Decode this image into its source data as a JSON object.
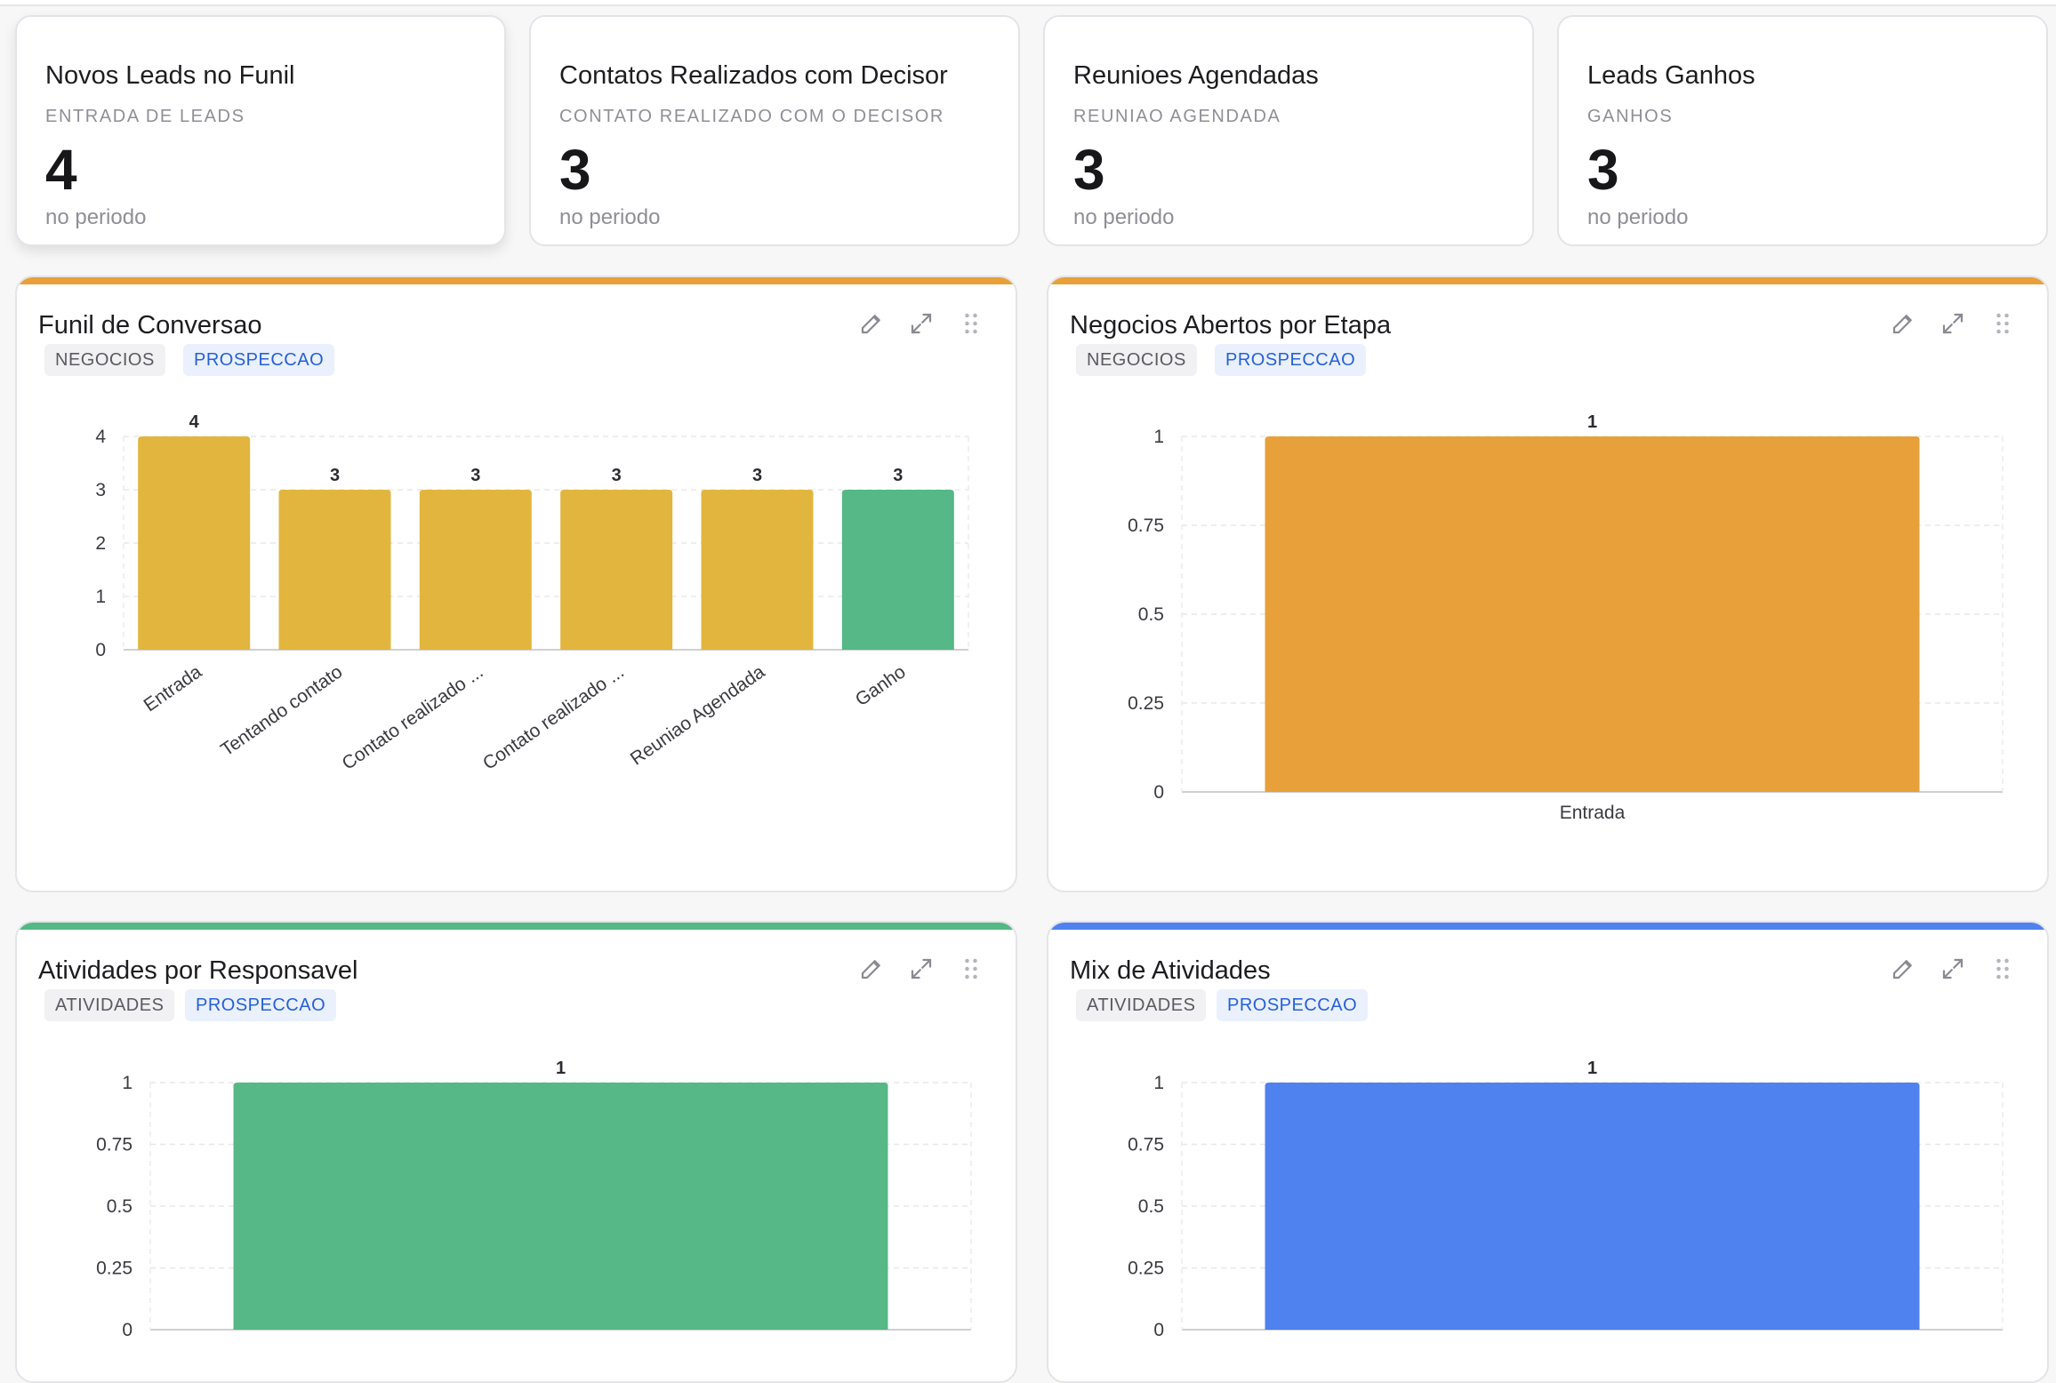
{
  "stats": [
    {
      "title": "Novos Leads no Funil",
      "subtitle": "ENTRADA DE LEADS",
      "value": "4",
      "foot": "no periodo"
    },
    {
      "title": "Contatos Realizados com Decisor",
      "subtitle": "CONTATO REALIZADO COM O DECISOR",
      "value": "3",
      "foot": "no periodo"
    },
    {
      "title": "Reunioes Agendadas",
      "subtitle": "REUNIAO AGENDADA",
      "value": "3",
      "foot": "no periodo"
    },
    {
      "title": "Leads Ganhos",
      "subtitle": "GANHOS",
      "value": "3",
      "foot": "no periodo"
    }
  ],
  "charts": [
    {
      "title": "Funil de Conversao",
      "tags": [
        "NEGOCIOS",
        "PROSPECCAO"
      ],
      "accent": "#e8a03a"
    },
    {
      "title": "Negocios Abertos por Etapa",
      "tags": [
        "NEGOCIOS",
        "PROSPECCAO"
      ],
      "accent": "#e8a03a"
    },
    {
      "title": "Atividades por Responsavel",
      "tags": [
        "ATIVIDADES",
        "PROSPECCAO"
      ],
      "accent": "#54b884"
    },
    {
      "title": "Mix de Atividades",
      "tags": [
        "ATIVIDADES",
        "PROSPECCAO"
      ],
      "accent": "#4f81ef"
    }
  ],
  "icons": {
    "edit": "pencil-icon",
    "expand": "expand-icon",
    "drag": "drag-handle-icon"
  },
  "chart_data": [
    {
      "type": "bar",
      "title": "Funil de Conversao",
      "categories": [
        "Entrada",
        "Tentando contato",
        "Contato realizado ...",
        "Contato realizado ...",
        "Reuniao Agendada",
        "Ganho"
      ],
      "values": [
        4,
        3,
        3,
        3,
        3,
        3
      ],
      "colors": [
        "#e2b53e",
        "#e2b53e",
        "#e2b53e",
        "#e2b53e",
        "#e2b53e",
        "#55b886"
      ],
      "yticks": [
        "0",
        "1",
        "2",
        "3",
        "4"
      ],
      "ylim": [
        0,
        4
      ],
      "grid": true
    },
    {
      "type": "bar",
      "title": "Negocios Abertos por Etapa",
      "categories": [
        "Entrada"
      ],
      "values": [
        1
      ],
      "colors": [
        "#e8a03a"
      ],
      "yticks": [
        "0",
        "0.25",
        "0.5",
        "0.75",
        "1"
      ],
      "ylim": [
        0,
        1
      ],
      "grid": true
    },
    {
      "type": "bar",
      "title": "Atividades por Responsavel",
      "categories": [
        ""
      ],
      "values": [
        1
      ],
      "colors": [
        "#55b886"
      ],
      "yticks": [
        "0",
        "0.25",
        "0.5",
        "0.75",
        "1"
      ],
      "ylim": [
        0,
        1
      ],
      "grid": true
    },
    {
      "type": "bar",
      "title": "Mix de Atividades",
      "categories": [
        ""
      ],
      "values": [
        1
      ],
      "colors": [
        "#4f81ef"
      ],
      "yticks": [
        "0",
        "0.25",
        "0.5",
        "0.75",
        "1"
      ],
      "ylim": [
        0,
        1
      ],
      "grid": true
    }
  ]
}
